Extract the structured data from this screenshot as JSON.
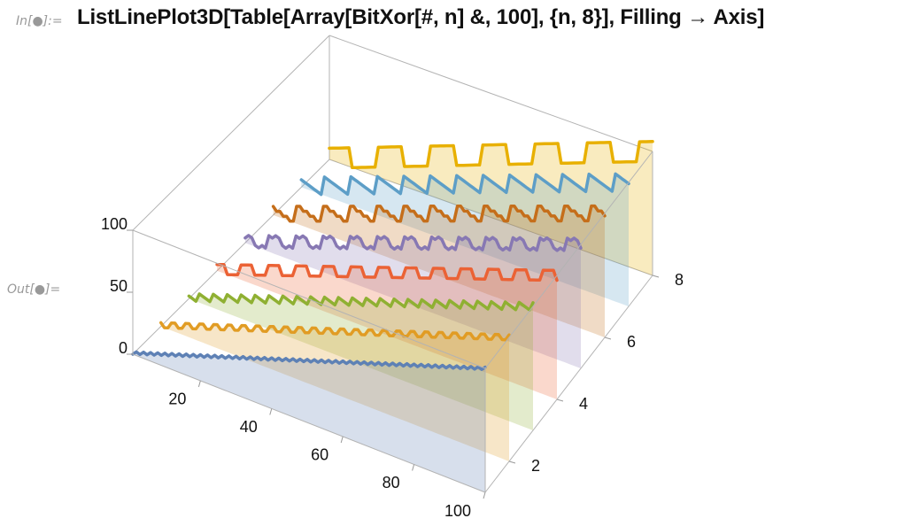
{
  "notebook": {
    "in_label": "In[●]:=",
    "out_label": "Out[●]=",
    "input_code": "ListLinePlot3D[Table[Array[BitXor[#, n] &, 100], {n, 8}], Filling → Axis]"
  },
  "chart_data": {
    "type": "line3d",
    "title": "",
    "filling": "Axis",
    "x_range": [
      1,
      100
    ],
    "y_range": [
      1,
      8
    ],
    "z_range": [
      0,
      100
    ],
    "x_ticks": [
      "20",
      "40",
      "60",
      "80",
      "100"
    ],
    "y_ticks": [
      "2",
      "4",
      "6",
      "8"
    ],
    "z_ticks": [
      "0",
      "50",
      "100"
    ],
    "series": [
      {
        "n": 1,
        "color": "#5E81B5"
      },
      {
        "n": 2,
        "color": "#E19C24"
      },
      {
        "n": 3,
        "color": "#8FB032"
      },
      {
        "n": 4,
        "color": "#EB6235"
      },
      {
        "n": 5,
        "color": "#8778B3"
      },
      {
        "n": 6,
        "color": "#C56E1A"
      },
      {
        "n": 7,
        "color": "#5D9EC7"
      },
      {
        "n": 8,
        "color": "#E8B000"
      }
    ]
  }
}
